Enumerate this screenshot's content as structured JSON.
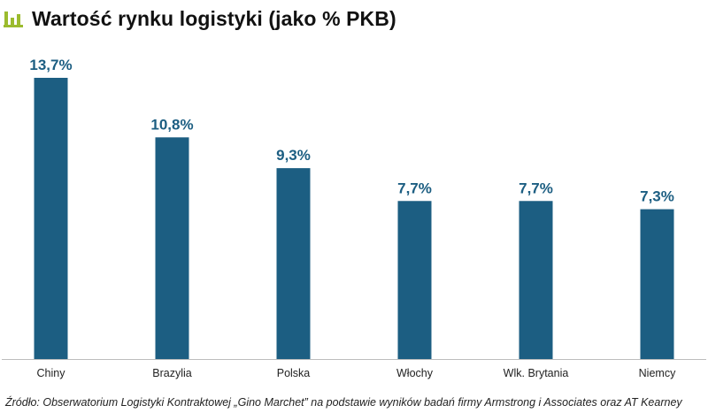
{
  "header": {
    "title": "Wartość rynku logistyki (jako % PKB)",
    "logo_icon": "bar-chart-icon",
    "accent_color": "#9bbb2e"
  },
  "chart_data": {
    "type": "bar",
    "title": "Wartość rynku logistyki (jako % PKB)",
    "categories": [
      "Chiny",
      "Brazylia",
      "Polska",
      "Włochy",
      "Wlk. Brytania",
      "Niemcy"
    ],
    "values": [
      13.7,
      10.8,
      9.3,
      7.7,
      7.7,
      7.3
    ],
    "value_labels": [
      "13,7%",
      "10,8%",
      "9,3%",
      "7,7%",
      "7,7%",
      "7,3%"
    ],
    "xlabel": "",
    "ylabel": "",
    "ylim": [
      0,
      13.7
    ],
    "grid": false,
    "legend": "none",
    "bar_color": "#1c5e82",
    "label_color": "#1c5e82"
  },
  "footer": {
    "source": "Źródło: Obserwatorium Logistyki Kontraktowej „Gino Marchet” na podstawie wyników badań firmy Armstrong i Associates oraz AT Kearney"
  }
}
